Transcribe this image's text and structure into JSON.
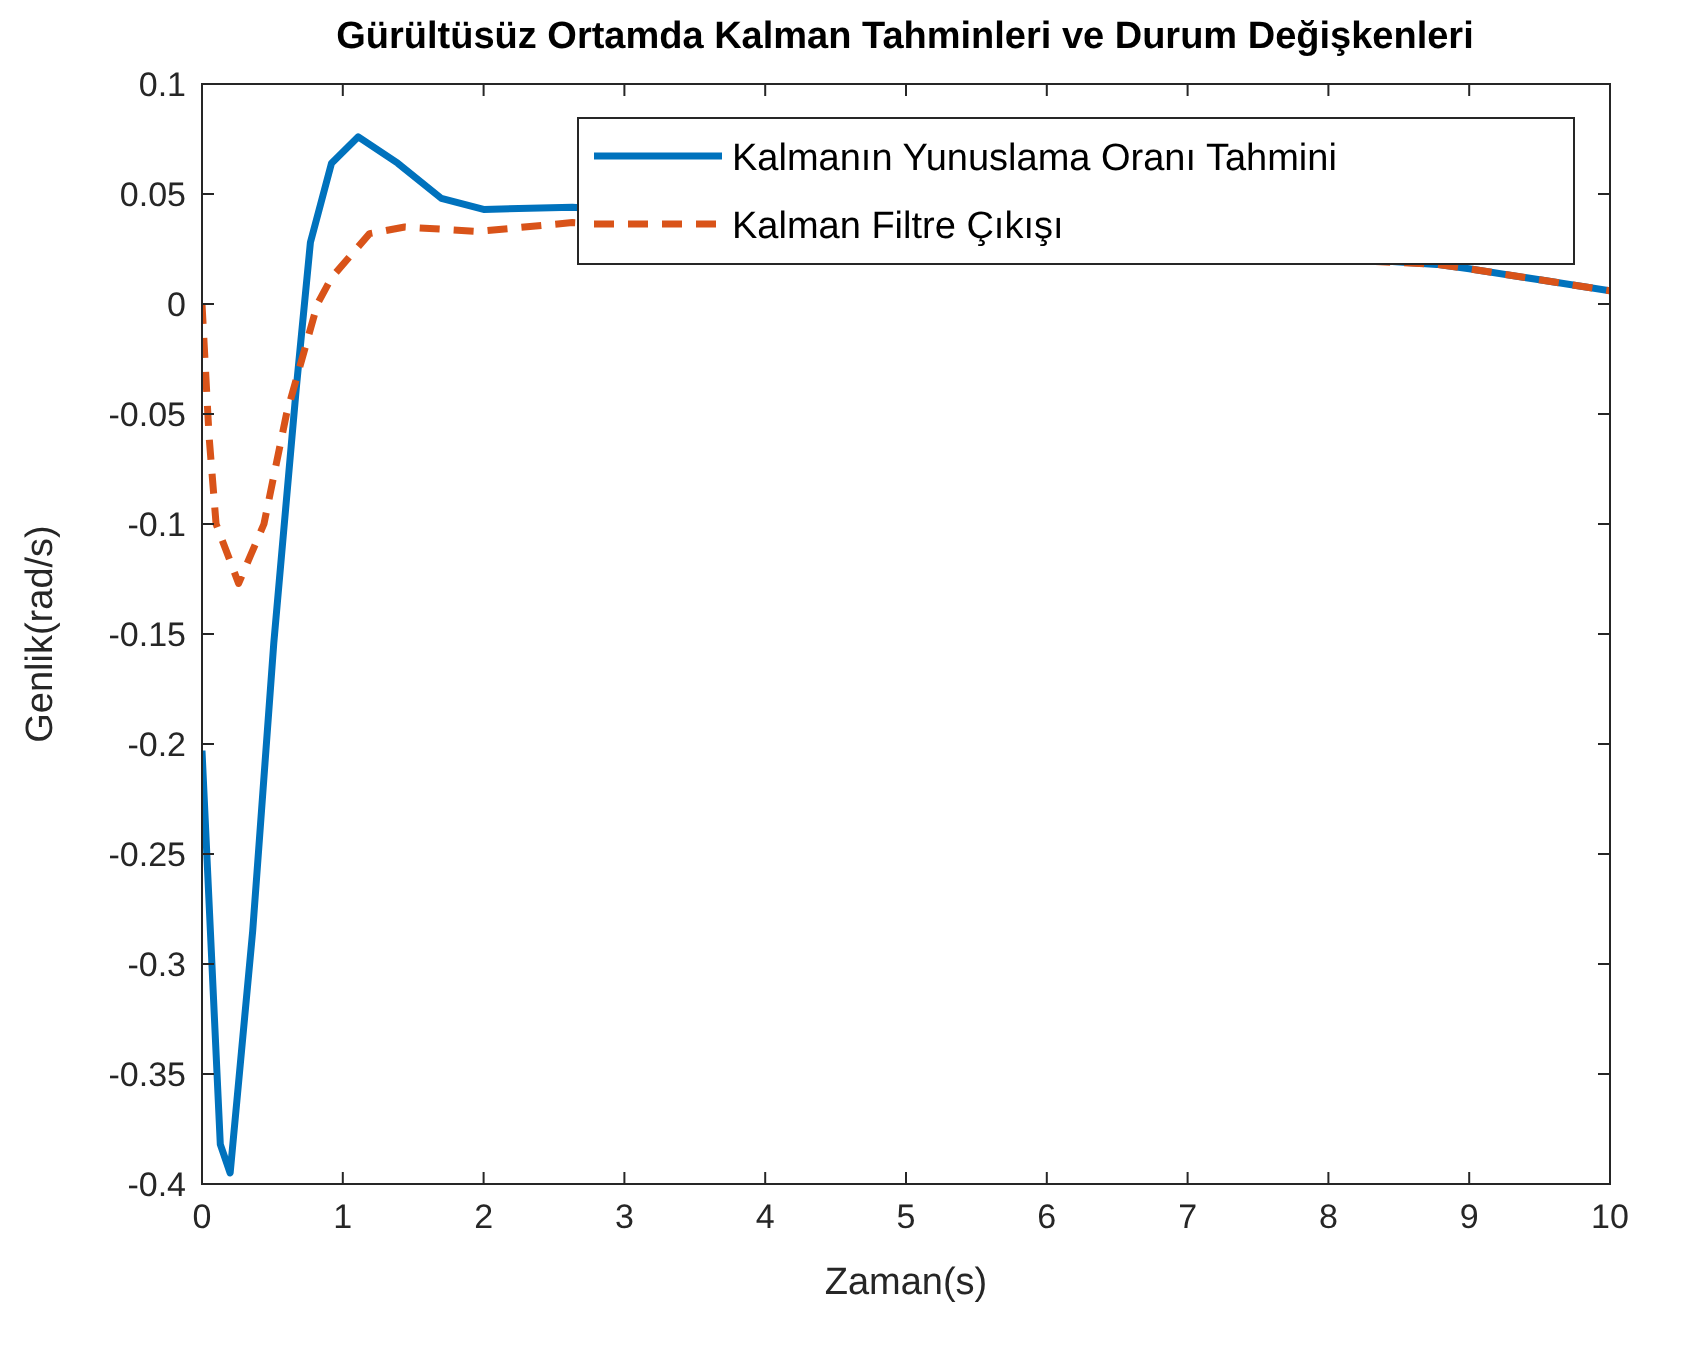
{
  "chart_data": {
    "type": "line",
    "title": "Gürültüsüz Ortamda Kalman Tahminleri ve Durum Değişkenleri",
    "xlabel": "Zaman(s)",
    "ylabel": "Genlik(rad/s)",
    "xlim": [
      0,
      10
    ],
    "ylim": [
      -0.4,
      0.1
    ],
    "xticks": [
      0,
      1,
      2,
      3,
      4,
      5,
      6,
      7,
      8,
      9,
      10
    ],
    "yticks": [
      -0.4,
      -0.35,
      -0.3,
      -0.25,
      -0.2,
      -0.15,
      -0.1,
      -0.05,
      0,
      0.05,
      0.1
    ],
    "grid": false,
    "legend": "top right",
    "series": [
      {
        "name": "Kalmanın Yunuslama Oranı Tahmini",
        "color": "#0072bd",
        "line_style": "solid",
        "x": [
          0,
          0.13,
          0.2,
          0.36,
          0.51,
          0.67,
          0.77,
          0.92,
          1.11,
          1.39,
          1.7,
          2,
          2.63,
          8.77,
          9,
          9.5,
          10
        ],
        "values": [
          -0.203,
          -0.382,
          -0.395,
          -0.285,
          -0.154,
          -0.038,
          0.028,
          0.064,
          0.076,
          0.064,
          0.048,
          0.043,
          0.044,
          0.018,
          0.016,
          0.011,
          0.006
        ]
      },
      {
        "name": "Kalman Filtre Çıkışı",
        "color": "#d95319",
        "line_style": "dashed",
        "x": [
          0,
          0.05,
          0.1,
          0.26,
          0.44,
          0.6,
          0.82,
          0.92,
          1.19,
          1.44,
          1.96,
          2.63,
          8.77,
          9,
          9.5,
          10
        ],
        "values": [
          0,
          -0.06,
          -0.1,
          -0.127,
          -0.1,
          -0.05,
          0,
          0.012,
          0.032,
          0.035,
          0.033,
          0.037,
          0.018,
          0.016,
          0.011,
          0.006
        ]
      }
    ]
  }
}
